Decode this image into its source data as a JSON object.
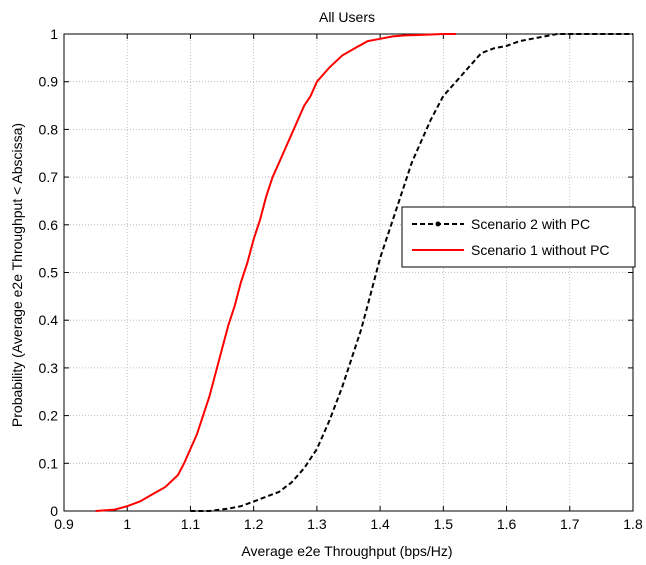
{
  "chart_data": {
    "type": "line",
    "title": "All Users",
    "xlabel": "Average e2e Throughput (bps/Hz)",
    "ylabel": "Probability (Average e2e Throughput < Abscissa)",
    "xlim": [
      0.9,
      1.8
    ],
    "ylim": [
      0,
      1
    ],
    "xticks": [
      0.9,
      1,
      1.1,
      1.2,
      1.3,
      1.4,
      1.5,
      1.6,
      1.7,
      1.8
    ],
    "xtick_labels": [
      "0.9",
      "1",
      "1.1",
      "1.2",
      "1.3",
      "1.4",
      "1.5",
      "1.6",
      "1.7",
      "1.8"
    ],
    "yticks": [
      0,
      0.1,
      0.2,
      0.3,
      0.4,
      0.5,
      0.6,
      0.7,
      0.8,
      0.9,
      1
    ],
    "ytick_labels": [
      "0",
      "0.1",
      "0.2",
      "0.3",
      "0.4",
      "0.5",
      "0.6",
      "0.7",
      "0.8",
      "0.9",
      "1"
    ],
    "grid": true,
    "legend_position": "right",
    "series": [
      {
        "name": "Scenario 2 with PC",
        "color": "#000000",
        "style": "dashed",
        "x": [
          1.1,
          1.13,
          1.16,
          1.18,
          1.2,
          1.22,
          1.24,
          1.26,
          1.28,
          1.3,
          1.32,
          1.34,
          1.35,
          1.36,
          1.37,
          1.38,
          1.39,
          1.4,
          1.41,
          1.42,
          1.43,
          1.44,
          1.45,
          1.46,
          1.48,
          1.5,
          1.52,
          1.54,
          1.56,
          1.58,
          1.6,
          1.62,
          1.64,
          1.66,
          1.68,
          1.7,
          1.75,
          1.8
        ],
        "y": [
          0.0,
          0.0,
          0.005,
          0.01,
          0.02,
          0.03,
          0.04,
          0.06,
          0.09,
          0.13,
          0.19,
          0.26,
          0.3,
          0.34,
          0.38,
          0.43,
          0.48,
          0.53,
          0.57,
          0.61,
          0.65,
          0.69,
          0.73,
          0.76,
          0.82,
          0.87,
          0.9,
          0.93,
          0.96,
          0.97,
          0.975,
          0.985,
          0.99,
          0.995,
          1.0,
          1.0,
          1.0,
          1.0
        ]
      },
      {
        "name": "Scenario 1 without PC",
        "color": "#ff0000",
        "style": "solid",
        "x": [
          0.95,
          0.98,
          1.0,
          1.02,
          1.04,
          1.06,
          1.08,
          1.09,
          1.1,
          1.11,
          1.12,
          1.13,
          1.14,
          1.15,
          1.16,
          1.17,
          1.18,
          1.19,
          1.2,
          1.21,
          1.22,
          1.23,
          1.24,
          1.25,
          1.26,
          1.27,
          1.28,
          1.29,
          1.3,
          1.32,
          1.34,
          1.36,
          1.38,
          1.4,
          1.42,
          1.44,
          1.46,
          1.48,
          1.5,
          1.52
        ],
        "y": [
          0.0,
          0.003,
          0.01,
          0.02,
          0.035,
          0.05,
          0.075,
          0.1,
          0.13,
          0.16,
          0.2,
          0.24,
          0.29,
          0.34,
          0.39,
          0.43,
          0.48,
          0.52,
          0.57,
          0.61,
          0.66,
          0.7,
          0.73,
          0.76,
          0.79,
          0.82,
          0.85,
          0.87,
          0.9,
          0.93,
          0.955,
          0.97,
          0.985,
          0.99,
          0.995,
          0.997,
          0.998,
          0.999,
          1.0,
          1.0
        ]
      }
    ]
  }
}
